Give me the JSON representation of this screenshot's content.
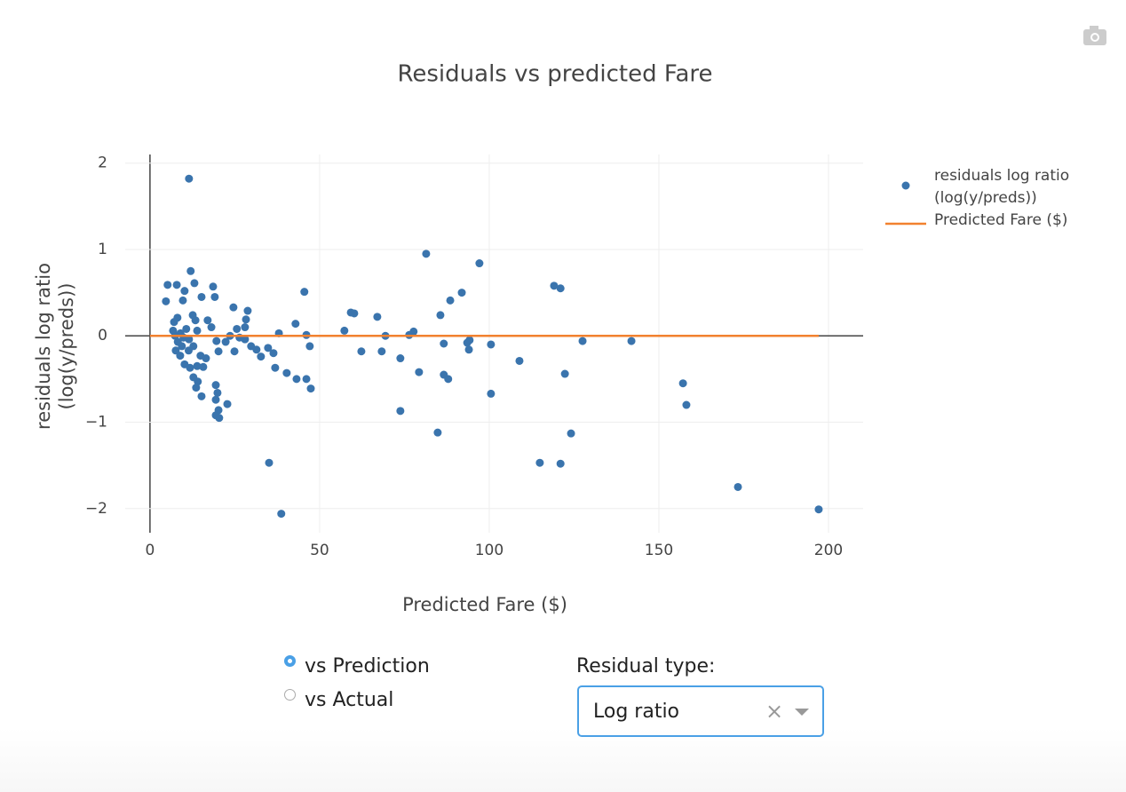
{
  "chart_data": {
    "type": "scatter",
    "title": "Residuals vs predicted Fare",
    "x_label": "Predicted Fare ($)",
    "y_label": [
      "residuals log ratio",
      "(log(y/preds))"
    ],
    "xlim": [
      -7.3,
      210.2
    ],
    "ylim": [
      -2.28,
      2.1
    ],
    "xticks": [
      0,
      50,
      100,
      150,
      200
    ],
    "yticks": [
      {
        "value": -2,
        "label": "−2"
      },
      {
        "value": -1,
        "label": "−1"
      },
      0,
      1,
      2
    ],
    "grid": true,
    "legend": "right",
    "series": [
      {
        "name": "residuals log ratio (log(y/preds))",
        "color": "#3a74ad",
        "mode": "markers",
        "x": [
          11.5,
          12.0,
          5.2,
          7.9,
          10.2,
          13.1,
          15.2,
          18.6,
          19.1,
          4.7,
          9.7,
          17.0,
          24.6,
          28.8,
          28.3,
          28.0,
          25.6,
          18.1,
          12.6,
          13.4,
          7.1,
          8.1,
          6.8,
          10.7,
          13.9,
          11.5,
          9.4,
          7.6,
          8.9,
          10.2,
          11.8,
          13.9,
          15.7,
          14.9,
          16.5,
          12.8,
          14.1,
          13.6,
          15.2,
          19.4,
          19.9,
          19.4,
          20.2,
          19.4,
          20.4,
          22.8,
          19.6,
          20.2,
          22.3,
          23.6,
          24.9,
          26.4,
          28.0,
          29.8,
          31.4,
          32.7,
          34.8,
          36.4,
          36.9,
          38.0,
          35.1,
          38.7,
          40.3,
          42.9,
          43.2,
          45.5,
          46.1,
          46.1,
          47.1,
          47.4,
          57.3,
          59.2,
          60.2,
          62.3,
          67.0,
          68.3,
          69.4,
          73.8,
          73.8,
          76.4,
          77.7,
          79.3,
          81.4,
          84.8,
          85.6,
          86.6,
          86.6,
          87.9,
          88.5,
          91.9,
          93.5,
          94.2,
          94.0,
          97.1,
          100.5,
          100.5,
          108.9,
          114.9,
          119.1,
          121.0,
          121.0,
          122.3,
          124.1,
          127.5,
          141.9,
          157.1,
          158.1,
          173.3,
          197.1,
          7.4,
          8.2,
          9.0,
          9.9,
          12.8,
          11.4
        ],
        "y": [
          1.82,
          0.75,
          0.59,
          0.59,
          0.52,
          0.61,
          0.45,
          0.57,
          0.45,
          0.4,
          0.41,
          0.18,
          0.33,
          0.29,
          0.19,
          0.1,
          0.08,
          0.1,
          0.24,
          0.18,
          0.16,
          0.21,
          0.06,
          0.08,
          0.06,
          -0.04,
          -0.12,
          -0.17,
          -0.23,
          -0.33,
          -0.37,
          -0.35,
          -0.36,
          -0.23,
          -0.26,
          -0.48,
          -0.53,
          -0.6,
          -0.7,
          -0.57,
          -0.66,
          -0.74,
          -0.86,
          -0.92,
          -0.95,
          -0.79,
          -0.06,
          -0.18,
          -0.07,
          0.0,
          -0.18,
          -0.02,
          -0.04,
          -0.12,
          -0.16,
          -0.24,
          -0.14,
          -0.2,
          -0.37,
          0.03,
          -1.47,
          -2.06,
          -0.43,
          0.14,
          -0.5,
          0.51,
          -0.5,
          0.01,
          -0.12,
          -0.61,
          0.06,
          0.27,
          0.26,
          -0.18,
          0.22,
          -0.18,
          0.0,
          -0.26,
          -0.87,
          0.01,
          0.05,
          -0.42,
          0.95,
          -1.12,
          0.24,
          -0.09,
          -0.45,
          -0.5,
          0.41,
          0.5,
          -0.08,
          -0.05,
          -0.16,
          0.84,
          -0.1,
          -0.67,
          -0.29,
          -1.47,
          0.58,
          0.55,
          -1.48,
          -0.44,
          -1.13,
          -0.06,
          -0.06,
          -0.55,
          -0.8,
          -1.75,
          -2.01,
          0.0,
          -0.07,
          0.03,
          -0.02,
          -0.12,
          -0.17
        ]
      },
      {
        "name": "Predicted Fare ($)",
        "color": "#f2812f",
        "mode": "lines",
        "x": [
          0,
          197.1
        ],
        "y": [
          0,
          0
        ]
      }
    ]
  },
  "controls": {
    "radio": [
      {
        "label": "vs Prediction",
        "selected": true
      },
      {
        "label": "vs Actual",
        "selected": false
      }
    ],
    "dropdown_label": "Residual type:",
    "dropdown_value": "Log ratio"
  }
}
